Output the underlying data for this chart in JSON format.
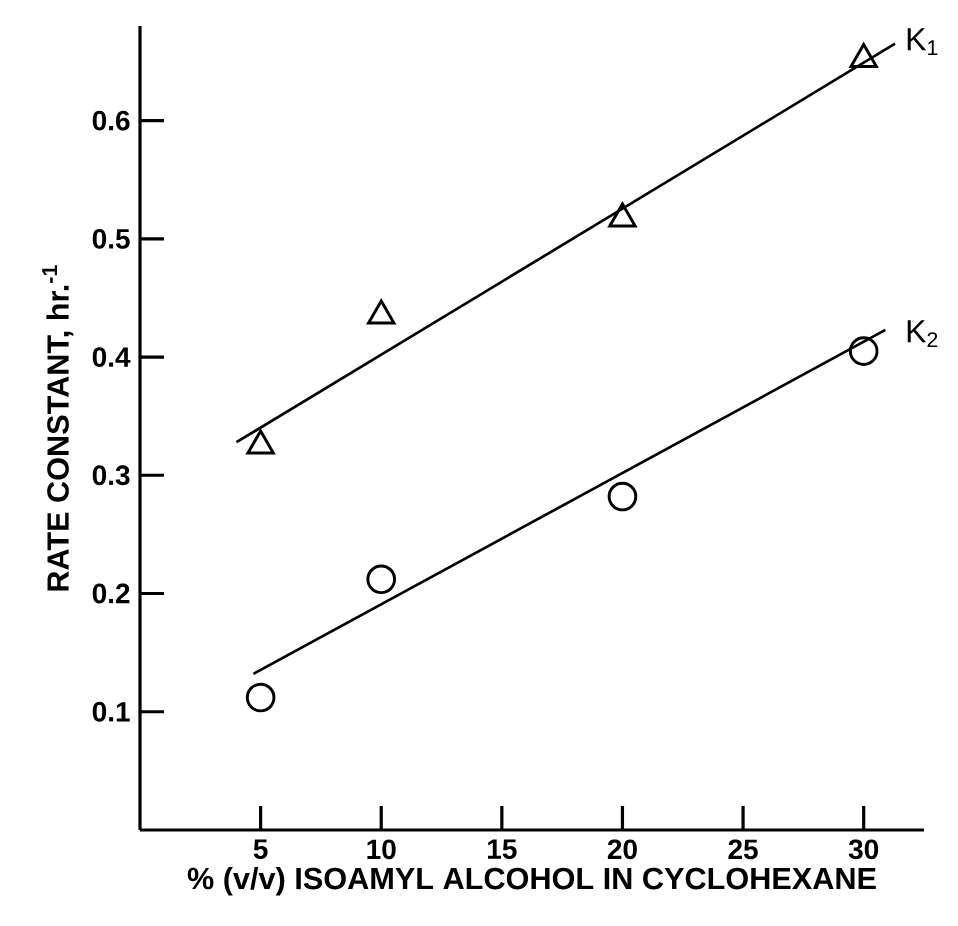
{
  "chart_data": {
    "type": "scatter",
    "xlabel": "% (v/v) ISOAMYL ALCOHOL IN CYCLOHEXANE",
    "ylabel": "RATE CONSTANT, hr.$^{-1}$",
    "xlim": [
      0,
      32.5
    ],
    "ylim": [
      0,
      0.68
    ],
    "xticks": [
      5,
      10,
      15,
      20,
      25,
      30
    ],
    "yticks": [
      0.1,
      0.2,
      0.3,
      0.4,
      0.5,
      0.6
    ],
    "grid": false,
    "series": [
      {
        "name": "K$_{1}$",
        "color": "#000000",
        "marker": "triangle",
        "x": [
          5,
          10,
          20,
          30
        ],
        "values": [
          0.325,
          0.435,
          0.517,
          0.652
        ]
      },
      {
        "name": "K$_{2}$",
        "color": "#000000",
        "marker": "circle",
        "x": [
          5,
          10,
          20,
          30
        ],
        "values": [
          0.112,
          0.212,
          0.282,
          0.405
        ]
      },
      {
        "type": "line",
        "color": "#000000",
        "marker": "none",
        "line_style": "solid",
        "x": [
          4,
          31.3
        ],
        "values": [
          0.328,
          0.665
        ]
      },
      {
        "type": "line",
        "color": "#000000",
        "marker": "none",
        "line_style": "solid",
        "x": [
          4.7,
          30.9
        ],
        "values": [
          0.132,
          0.423
        ]
      }
    ]
  }
}
